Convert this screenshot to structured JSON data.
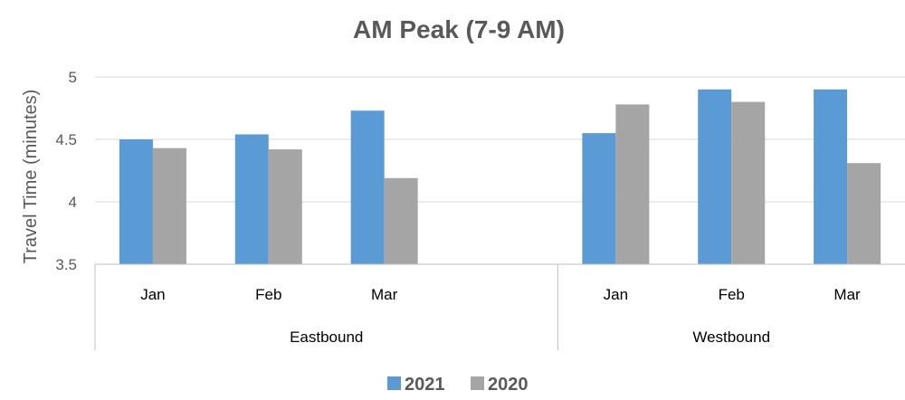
{
  "chart_data": {
    "type": "bar",
    "title": "AM Peak (7-9 AM)",
    "ylabel": "Travel Time (minutes)",
    "xlabel": "",
    "ylim": [
      3.5,
      5
    ],
    "yticks": [
      "3.5",
      "4",
      "4.5",
      "5"
    ],
    "grid": true,
    "legend_position": "bottom",
    "groups": [
      {
        "name": "Eastbound",
        "categories": [
          "Jan",
          "Feb",
          "Mar",
          ""
        ]
      },
      {
        "name": "Westbound",
        "categories": [
          "Jan",
          "Feb",
          "Mar"
        ]
      }
    ],
    "series": [
      {
        "name": "2021",
        "color": "#5b9bd5",
        "values": [
          4.5,
          4.54,
          4.73,
          null,
          4.55,
          4.9,
          4.9
        ]
      },
      {
        "name": "2020",
        "color": "#a5a5a5",
        "values": [
          4.43,
          4.42,
          4.19,
          null,
          4.78,
          4.8,
          4.31
        ]
      }
    ]
  }
}
